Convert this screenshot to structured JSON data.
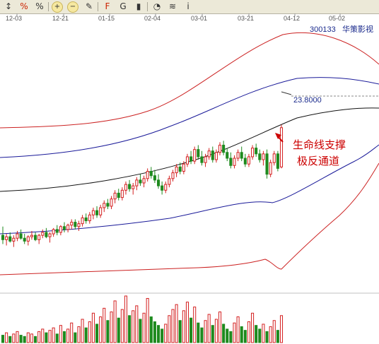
{
  "toolbar": {
    "buttons": [
      {
        "name": "draw-line-button",
        "icon": "line-tool-icon",
        "glyph": "↕"
      },
      {
        "name": "percent-button",
        "icon": "percent-icon",
        "glyph": "%"
      },
      {
        "name": "percent-change-button",
        "icon": "percent-change-icon",
        "glyph": "%"
      },
      {
        "name": "zoom-in-button",
        "icon": "zoom-in-icon",
        "glyph": "+"
      },
      {
        "name": "zoom-out-button",
        "icon": "zoom-out-icon",
        "glyph": "−"
      },
      {
        "name": "draw-tool-button",
        "icon": "pen-icon",
        "glyph": "✎"
      },
      {
        "name": "fibonacci-button",
        "icon": "fibonacci-icon",
        "glyph": "F"
      },
      {
        "name": "gann-button",
        "icon": "gann-icon",
        "glyph": "G"
      },
      {
        "name": "candle-style-button",
        "icon": "candlestick-icon",
        "glyph": "▮"
      },
      {
        "name": "cycle-button",
        "icon": "cycle-icon",
        "glyph": "◔"
      },
      {
        "name": "band-button",
        "icon": "band-icon",
        "glyph": "≋"
      },
      {
        "name": "info-button",
        "icon": "info-icon",
        "glyph": "i"
      }
    ]
  },
  "chart_data": {
    "type": "candlestick",
    "stock_code": "300133",
    "stock_name": "华策影视",
    "x_tick_labels": [
      "12-03",
      "12-21",
      "01-15",
      "02-04",
      "03-01",
      "03-21",
      "04-12",
      "05-02"
    ],
    "price_marker": "23.8000",
    "annotation": {
      "line1": "生命线支撑",
      "line2": "极反通道"
    },
    "colors": {
      "up": "#d42020",
      "down": "#1e8a1e",
      "outer_band": "#cc2222",
      "inner_band": "#1a1a99",
      "life_line": "#111111",
      "arrow": "#cc0000",
      "volume_up": "#d42020",
      "volume_down": "#1e8a1e"
    },
    "price_range": [
      13.0,
      30.0
    ],
    "grid": false,
    "candles": [
      {
        "o": 16.2,
        "h": 16.8,
        "l": 15.6,
        "c": 15.9
      },
      {
        "o": 15.9,
        "h": 16.3,
        "l": 15.5,
        "c": 16.1
      },
      {
        "o": 16.1,
        "h": 16.4,
        "l": 15.7,
        "c": 15.8
      },
      {
        "o": 15.8,
        "h": 16.2,
        "l": 15.4,
        "c": 16.0
      },
      {
        "o": 16.0,
        "h": 16.5,
        "l": 15.8,
        "c": 16.3
      },
      {
        "o": 16.3,
        "h": 16.6,
        "l": 15.9,
        "c": 16.0
      },
      {
        "o": 16.0,
        "h": 16.3,
        "l": 15.6,
        "c": 15.8
      },
      {
        "o": 15.8,
        "h": 16.2,
        "l": 15.5,
        "c": 16.1
      },
      {
        "o": 16.1,
        "h": 16.5,
        "l": 15.9,
        "c": 16.2
      },
      {
        "o": 16.2,
        "h": 16.4,
        "l": 15.8,
        "c": 15.9
      },
      {
        "o": 15.9,
        "h": 16.3,
        "l": 15.6,
        "c": 16.2
      },
      {
        "o": 16.2,
        "h": 16.6,
        "l": 16.0,
        "c": 16.4
      },
      {
        "o": 16.4,
        "h": 16.7,
        "l": 16.0,
        "c": 16.1
      },
      {
        "o": 16.1,
        "h": 16.4,
        "l": 15.7,
        "c": 16.3
      },
      {
        "o": 16.3,
        "h": 16.7,
        "l": 16.1,
        "c": 16.6
      },
      {
        "o": 16.6,
        "h": 16.9,
        "l": 16.2,
        "c": 16.4
      },
      {
        "o": 16.4,
        "h": 16.9,
        "l": 16.2,
        "c": 16.8
      },
      {
        "o": 16.8,
        "h": 17.1,
        "l": 16.4,
        "c": 16.6
      },
      {
        "o": 16.6,
        "h": 17.0,
        "l": 16.4,
        "c": 16.9
      },
      {
        "o": 16.9,
        "h": 17.3,
        "l": 16.6,
        "c": 17.1
      },
      {
        "o": 17.1,
        "h": 17.3,
        "l": 16.6,
        "c": 16.8
      },
      {
        "o": 16.8,
        "h": 17.2,
        "l": 16.5,
        "c": 17.0
      },
      {
        "o": 17.0,
        "h": 17.6,
        "l": 16.8,
        "c": 17.4
      },
      {
        "o": 17.4,
        "h": 17.7,
        "l": 17.0,
        "c": 17.2
      },
      {
        "o": 17.2,
        "h": 17.8,
        "l": 17.0,
        "c": 17.6
      },
      {
        "o": 17.6,
        "h": 18.1,
        "l": 17.3,
        "c": 17.9
      },
      {
        "o": 17.9,
        "h": 18.2,
        "l": 17.4,
        "c": 17.6
      },
      {
        "o": 17.6,
        "h": 18.3,
        "l": 17.4,
        "c": 18.1
      },
      {
        "o": 18.1,
        "h": 18.6,
        "l": 17.8,
        "c": 18.4
      },
      {
        "o": 18.4,
        "h": 18.7,
        "l": 18.0,
        "c": 18.2
      },
      {
        "o": 18.2,
        "h": 18.9,
        "l": 18.0,
        "c": 18.7
      },
      {
        "o": 18.7,
        "h": 19.3,
        "l": 18.4,
        "c": 19.1
      },
      {
        "o": 19.1,
        "h": 19.4,
        "l": 18.6,
        "c": 18.8
      },
      {
        "o": 18.8,
        "h": 19.5,
        "l": 18.6,
        "c": 19.3
      },
      {
        "o": 19.3,
        "h": 19.9,
        "l": 19.0,
        "c": 19.7
      },
      {
        "o": 19.7,
        "h": 20.0,
        "l": 19.2,
        "c": 19.4
      },
      {
        "o": 19.4,
        "h": 19.8,
        "l": 19.0,
        "c": 19.6
      },
      {
        "o": 19.6,
        "h": 20.2,
        "l": 19.3,
        "c": 20.0
      },
      {
        "o": 20.0,
        "h": 20.4,
        "l": 19.6,
        "c": 19.8
      },
      {
        "o": 19.8,
        "h": 20.3,
        "l": 19.5,
        "c": 20.1
      },
      {
        "o": 20.1,
        "h": 20.8,
        "l": 19.9,
        "c": 20.6
      },
      {
        "o": 20.6,
        "h": 20.9,
        "l": 20.1,
        "c": 20.3
      },
      {
        "o": 20.3,
        "h": 20.7,
        "l": 19.8,
        "c": 20.0
      },
      {
        "o": 20.0,
        "h": 20.4,
        "l": 19.4,
        "c": 19.6
      },
      {
        "o": 19.6,
        "h": 19.9,
        "l": 19.0,
        "c": 19.3
      },
      {
        "o": 19.3,
        "h": 19.9,
        "l": 19.1,
        "c": 19.7
      },
      {
        "o": 19.7,
        "h": 20.3,
        "l": 19.5,
        "c": 20.1
      },
      {
        "o": 20.1,
        "h": 20.7,
        "l": 19.9,
        "c": 20.5
      },
      {
        "o": 20.5,
        "h": 21.1,
        "l": 20.2,
        "c": 20.9
      },
      {
        "o": 20.9,
        "h": 21.2,
        "l": 20.4,
        "c": 20.6
      },
      {
        "o": 20.6,
        "h": 21.3,
        "l": 20.4,
        "c": 21.1
      },
      {
        "o": 21.1,
        "h": 21.8,
        "l": 20.9,
        "c": 21.6
      },
      {
        "o": 21.6,
        "h": 22.0,
        "l": 21.1,
        "c": 21.3
      },
      {
        "o": 21.3,
        "h": 22.3,
        "l": 21.1,
        "c": 22.1
      },
      {
        "o": 22.1,
        "h": 22.4,
        "l": 21.4,
        "c": 21.6
      },
      {
        "o": 21.6,
        "h": 22.0,
        "l": 21.0,
        "c": 21.2
      },
      {
        "o": 21.2,
        "h": 21.8,
        "l": 20.9,
        "c": 21.6
      },
      {
        "o": 21.6,
        "h": 22.2,
        "l": 21.4,
        "c": 22.0
      },
      {
        "o": 22.0,
        "h": 22.3,
        "l": 21.2,
        "c": 21.4
      },
      {
        "o": 21.4,
        "h": 22.1,
        "l": 21.2,
        "c": 21.9
      },
      {
        "o": 21.9,
        "h": 22.6,
        "l": 21.7,
        "c": 22.4
      },
      {
        "o": 22.4,
        "h": 22.7,
        "l": 21.7,
        "c": 21.9
      },
      {
        "o": 21.9,
        "h": 22.2,
        "l": 21.3,
        "c": 21.5
      },
      {
        "o": 21.5,
        "h": 21.9,
        "l": 20.8,
        "c": 21.0
      },
      {
        "o": 21.0,
        "h": 21.7,
        "l": 20.8,
        "c": 21.5
      },
      {
        "o": 21.5,
        "h": 22.1,
        "l": 21.3,
        "c": 21.9
      },
      {
        "o": 21.9,
        "h": 22.3,
        "l": 21.3,
        "c": 21.5
      },
      {
        "o": 21.5,
        "h": 21.8,
        "l": 20.9,
        "c": 21.1
      },
      {
        "o": 21.1,
        "h": 21.8,
        "l": 20.9,
        "c": 21.6
      },
      {
        "o": 21.6,
        "h": 22.4,
        "l": 21.4,
        "c": 22.2
      },
      {
        "o": 22.2,
        "h": 22.5,
        "l": 21.6,
        "c": 21.8
      },
      {
        "o": 21.8,
        "h": 22.1,
        "l": 21.2,
        "c": 21.4
      },
      {
        "o": 21.4,
        "h": 22.0,
        "l": 21.0,
        "c": 21.8
      },
      {
        "o": 21.8,
        "h": 22.1,
        "l": 20.1,
        "c": 20.4
      },
      {
        "o": 20.4,
        "h": 21.4,
        "l": 20.2,
        "c": 21.2
      },
      {
        "o": 21.2,
        "h": 22.0,
        "l": 21.0,
        "c": 21.8
      },
      {
        "o": 21.8,
        "h": 22.0,
        "l": 20.6,
        "c": 20.8
      },
      {
        "o": 20.9,
        "h": 23.8,
        "l": 20.8,
        "c": 23.6
      }
    ],
    "volumes": [
      6,
      8,
      5,
      7,
      9,
      6,
      5,
      8,
      7,
      5,
      9,
      11,
      8,
      10,
      12,
      7,
      14,
      9,
      11,
      16,
      8,
      13,
      19,
      12,
      17,
      24,
      15,
      21,
      28,
      18,
      25,
      34,
      20,
      27,
      38,
      22,
      26,
      30,
      19,
      24,
      36,
      21,
      17,
      14,
      11,
      15,
      22,
      27,
      31,
      18,
      26,
      33,
      20,
      29,
      16,
      12,
      18,
      23,
      14,
      19,
      25,
      15,
      11,
      9,
      16,
      21,
      13,
      10,
      17,
      24,
      14,
      11,
      15,
      9,
      13,
      18,
      10,
      22
    ]
  }
}
